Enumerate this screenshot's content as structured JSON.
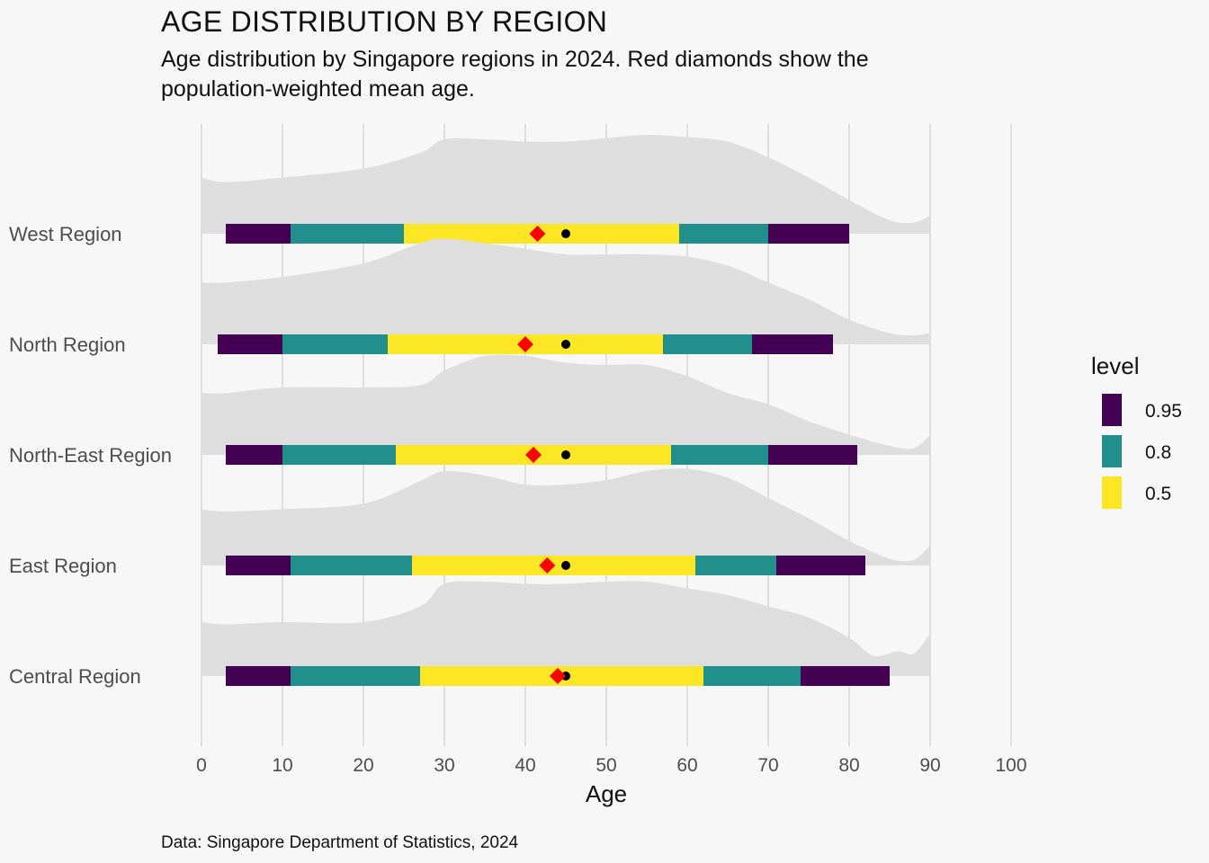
{
  "title": "AGE DISTRIBUTION BY REGION",
  "subtitle": "Age distribution by Singapore regions in 2024. Red diamonds show the population-weighted mean age.",
  "caption": "Data: Singapore Department of Statistics, 2024",
  "colors": {
    "background": "#f7f7f7",
    "density": "#dedede",
    "grid": "#c4c4c4",
    "level_95": "#440154",
    "level_80": "#21908c",
    "level_50": "#fde725",
    "mean_marker": "#ff0000",
    "median_marker": "#000000"
  },
  "chart_data": {
    "type": "interval",
    "xlabel": "Age",
    "ylabel": "",
    "xlim": [
      0,
      100
    ],
    "x_ticks": [
      0,
      10,
      20,
      30,
      40,
      50,
      60,
      70,
      80,
      90,
      100
    ],
    "grid": true,
    "legend": {
      "title": "level",
      "position": "right",
      "entries": [
        "0.95",
        "0.8",
        "0.5"
      ]
    },
    "regions": [
      {
        "name": "West Region",
        "interval_95": [
          3,
          80
        ],
        "interval_80": [
          11,
          70
        ],
        "interval_50": [
          25,
          59
        ],
        "median": 45,
        "weighted_mean": 41.5,
        "density_x": [
          0,
          3,
          10,
          20,
          27,
          30,
          35,
          40,
          45,
          50,
          55,
          60,
          65,
          70,
          75,
          80,
          85,
          88,
          90
        ],
        "density": [
          0.5,
          0.46,
          0.5,
          0.58,
          0.72,
          0.84,
          0.84,
          0.82,
          0.82,
          0.85,
          0.88,
          0.86,
          0.82,
          0.68,
          0.5,
          0.3,
          0.12,
          0.1,
          0.16
        ]
      },
      {
        "name": "North Region",
        "interval_95": [
          2,
          78
        ],
        "interval_80": [
          10,
          68
        ],
        "interval_50": [
          23,
          57
        ],
        "median": 45,
        "weighted_mean": 40,
        "density_x": [
          0,
          3,
          10,
          20,
          27,
          30,
          35,
          40,
          45,
          50,
          55,
          60,
          65,
          70,
          75,
          80,
          85,
          88,
          90
        ],
        "density": [
          0.55,
          0.55,
          0.6,
          0.72,
          0.9,
          0.94,
          0.9,
          0.85,
          0.8,
          0.8,
          0.8,
          0.78,
          0.7,
          0.55,
          0.4,
          0.22,
          0.1,
          0.08,
          0.1
        ]
      },
      {
        "name": "North-East Region",
        "interval_95": [
          3,
          81
        ],
        "interval_80": [
          10,
          70
        ],
        "interval_50": [
          24,
          58
        ],
        "median": 45,
        "weighted_mean": 41,
        "density_x": [
          0,
          3,
          10,
          20,
          27,
          30,
          35,
          40,
          45,
          50,
          55,
          60,
          65,
          70,
          75,
          80,
          85,
          88,
          90
        ],
        "density": [
          0.55,
          0.55,
          0.6,
          0.6,
          0.62,
          0.75,
          0.88,
          0.88,
          0.82,
          0.8,
          0.8,
          0.7,
          0.55,
          0.45,
          0.3,
          0.18,
          0.08,
          0.06,
          0.18
        ]
      },
      {
        "name": "East Region",
        "interval_95": [
          3,
          82
        ],
        "interval_80": [
          11,
          71
        ],
        "interval_50": [
          26,
          61
        ],
        "median": 45,
        "weighted_mean": 42.7,
        "density_x": [
          0,
          3,
          10,
          20,
          27,
          30,
          35,
          40,
          45,
          50,
          55,
          60,
          65,
          70,
          75,
          80,
          85,
          88,
          90
        ],
        "density": [
          0.5,
          0.48,
          0.5,
          0.55,
          0.75,
          0.84,
          0.8,
          0.72,
          0.72,
          0.76,
          0.84,
          0.86,
          0.78,
          0.6,
          0.42,
          0.22,
          0.06,
          0.05,
          0.18
        ]
      },
      {
        "name": "Central Region",
        "interval_95": [
          3,
          85
        ],
        "interval_80": [
          11,
          74
        ],
        "interval_50": [
          27,
          62
        ],
        "median": 45,
        "weighted_mean": 44,
        "density_x": [
          0,
          3,
          10,
          20,
          27,
          30,
          35,
          40,
          45,
          50,
          55,
          60,
          65,
          70,
          75,
          80,
          83,
          86,
          88,
          90
        ],
        "density": [
          0.48,
          0.46,
          0.48,
          0.48,
          0.62,
          0.82,
          0.84,
          0.82,
          0.82,
          0.84,
          0.84,
          0.78,
          0.72,
          0.62,
          0.52,
          0.34,
          0.18,
          0.22,
          0.2,
          0.38
        ]
      }
    ]
  }
}
